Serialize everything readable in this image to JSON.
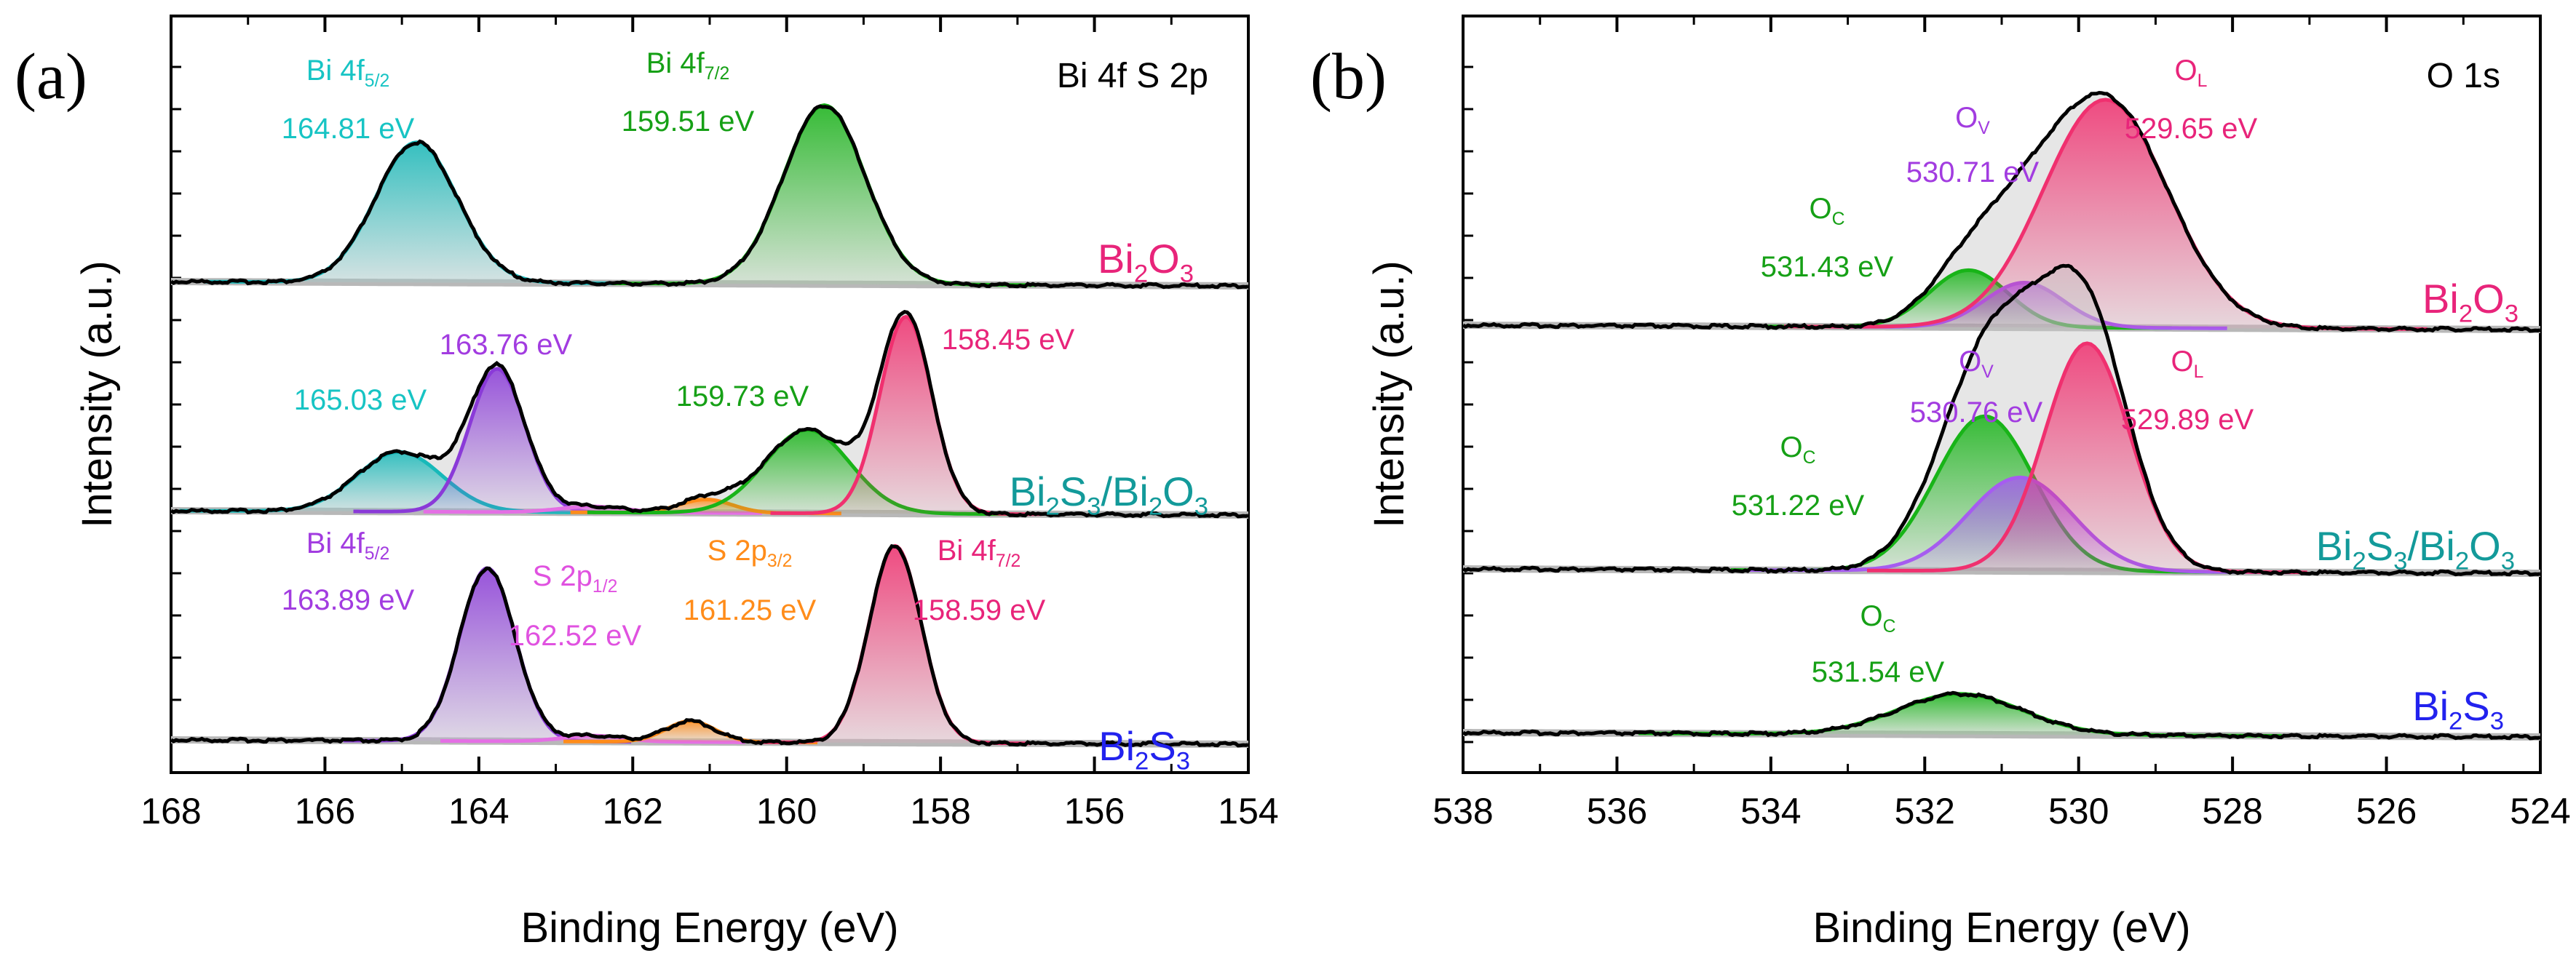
{
  "chart_data": [
    {
      "type": "area",
      "panel_label": "(a)",
      "title": "Bi 4f S 2p",
      "xlabel": "Binding Energy (eV)",
      "ylabel": "Intensity (a.u.)",
      "xlim": [
        168,
        154
      ],
      "x_reversed": true,
      "x_ticks": [
        168,
        166,
        164,
        162,
        160,
        158,
        156,
        154
      ],
      "grid": false,
      "stack_order_top_to_bottom": [
        "Bi2O3",
        "Bi2S3/Bi2O3",
        "Bi2S3"
      ],
      "spectra": [
        {
          "label_parts": [
            [
              "Bi",
              ""
            ],
            [
              "2",
              "sub"
            ],
            [
              "O",
              ""
            ],
            [
              "3",
              "sub"
            ]
          ],
          "label_color": "#e8247a",
          "peaks": [
            {
              "label_parts": [
                [
                  "Bi 4f",
                  ""
                ],
                [
                  "5/2",
                  "sub"
                ]
              ],
              "label_color": "#17c4c4",
              "fill_color": "#17b9b9",
              "center_eV": 164.81,
              "energy_label": "164.81 eV",
              "relative_height": 0.47,
              "fwhm_eV": 1.25
            },
            {
              "label_parts": [
                [
                  "Bi 4f",
                  ""
                ],
                [
                  "7/2",
                  "sub"
                ]
              ],
              "label_color": "#16a016",
              "fill_color": "#18b418",
              "center_eV": 159.51,
              "energy_label": "159.51 eV",
              "relative_height": 0.6,
              "fwhm_eV": 1.25
            }
          ]
        },
        {
          "label_parts": [
            [
              "Bi",
              ""
            ],
            [
              "2",
              "sub"
            ],
            [
              "S",
              ""
            ],
            [
              "3",
              "sub"
            ],
            [
              "/Bi",
              ""
            ],
            [
              "2",
              "sub"
            ],
            [
              "O",
              ""
            ],
            [
              "3",
              "sub"
            ]
          ],
          "label_color": "#139a9a",
          "peaks": [
            {
              "label_parts": [],
              "energy_label": "165.03 eV",
              "label_color": "#17c4c4",
              "fill_color": "#17b9b9",
              "center_eV": 165.03,
              "relative_height": 0.2,
              "fwhm_eV": 1.3
            },
            {
              "label_parts": [],
              "energy_label": "163.76 eV",
              "label_color": "#a23ce0",
              "fill_color": "#8a3ad8",
              "center_eV": 163.76,
              "relative_height": 0.48,
              "fwhm_eV": 0.85
            },
            {
              "label_parts": [],
              "energy_label": "",
              "label_color": "#e052e0",
              "fill_color": "#e46fe4",
              "center_eV": 162.52,
              "relative_height": 0.02,
              "fwhm_eV": 1.0
            },
            {
              "label_parts": [],
              "energy_label": "",
              "label_color": "#ff8c1a",
              "fill_color": "#ff8c1a",
              "center_eV": 161.05,
              "relative_height": 0.045,
              "fwhm_eV": 0.8
            },
            {
              "label_parts": [],
              "energy_label": "159.73 eV",
              "label_color": "#16a016",
              "fill_color": "#18b418",
              "center_eV": 159.73,
              "relative_height": 0.28,
              "fwhm_eV": 1.3
            },
            {
              "label_parts": [],
              "energy_label": "158.45 eV",
              "label_color": "#e8247a",
              "fill_color": "#f0306f",
              "center_eV": 158.45,
              "relative_height": 0.66,
              "fwhm_eV": 0.8
            }
          ]
        },
        {
          "label_parts": [
            [
              "Bi",
              ""
            ],
            [
              "2",
              "sub"
            ],
            [
              "S",
              ""
            ],
            [
              "3",
              "sub"
            ]
          ],
          "label_color": "#2222ee",
          "peaks": [
            {
              "label_parts": [
                [
                  "Bi 4f",
                  ""
                ],
                [
                  "5/2",
                  "sub"
                ]
              ],
              "label_color": "#a23ce0",
              "fill_color": "#8a3ad8",
              "center_eV": 163.89,
              "energy_label": "163.89 eV",
              "relative_height": 0.58,
              "fwhm_eV": 0.85
            },
            {
              "label_parts": [
                [
                  "S 2p",
                  ""
                ],
                [
                  "1/2",
                  "sub"
                ]
              ],
              "label_color": "#e052e0",
              "fill_color": "#e46fe4",
              "center_eV": 162.52,
              "energy_label": "162.52 eV",
              "relative_height": 0.02,
              "fwhm_eV": 0.9
            },
            {
              "label_parts": [
                [
                  "S 2p",
                  ""
                ],
                [
                  "3/2",
                  "sub"
                ]
              ],
              "label_color": "#ff8c1a",
              "fill_color": "#ff8c1a",
              "center_eV": 161.25,
              "energy_label": "161.25 eV",
              "relative_height": 0.07,
              "fwhm_eV": 0.75
            },
            {
              "label_parts": [
                [
                  "Bi 4f",
                  ""
                ],
                [
                  "7/2",
                  "sub"
                ]
              ],
              "label_color": "#e8247a",
              "fill_color": "#f0306f",
              "center_eV": 158.59,
              "energy_label": "158.59 eV",
              "relative_height": 0.66,
              "fwhm_eV": 0.8
            }
          ]
        }
      ]
    },
    {
      "type": "area",
      "panel_label": "(b)",
      "title": "O 1s",
      "xlabel": "Binding Energy (eV)",
      "ylabel": "Intensity (a.u.)",
      "xlim": [
        538,
        524
      ],
      "x_reversed": true,
      "x_ticks": [
        538,
        536,
        534,
        532,
        530,
        528,
        526,
        524
      ],
      "grid": false,
      "stack_order_top_to_bottom": [
        "Bi2O3",
        "Bi2S3/Bi2O3",
        "Bi2S3"
      ],
      "spectra": [
        {
          "label_parts": [
            [
              "Bi",
              ""
            ],
            [
              "2",
              "sub"
            ],
            [
              "O",
              ""
            ],
            [
              "3",
              "sub"
            ]
          ],
          "label_color": "#e8247a",
          "peaks": [
            {
              "label_parts": [
                [
                  "O",
                  ""
                ],
                [
                  "C",
                  "sub"
                ]
              ],
              "label_color": "#16a016",
              "fill_color": "#18b418",
              "center_eV": 531.43,
              "energy_label": "531.43 eV",
              "relative_height": 0.14,
              "fwhm_eV": 1.2
            },
            {
              "label_parts": [
                [
                  "O",
                  ""
                ],
                [
                  "V",
                  "sub"
                ]
              ],
              "label_color": "#a23ce0",
              "fill_color": "#a65cf0",
              "center_eV": 530.71,
              "energy_label": "530.71 eV",
              "relative_height": 0.11,
              "fwhm_eV": 1.2
            },
            {
              "label_parts": [
                [
                  "O",
                  ""
                ],
                [
                  "L",
                  "sub"
                ]
              ],
              "label_color": "#e8247a",
              "fill_color": "#f0306f",
              "center_eV": 529.65,
              "energy_label": "529.65 eV",
              "relative_height": 0.56,
              "fwhm_eV": 1.9
            }
          ]
        },
        {
          "label_parts": [
            [
              "Bi",
              ""
            ],
            [
              "2",
              "sub"
            ],
            [
              "S",
              ""
            ],
            [
              "3",
              "sub"
            ],
            [
              "/Bi",
              ""
            ],
            [
              "2",
              "sub"
            ],
            [
              "O",
              ""
            ],
            [
              "3",
              "sub"
            ]
          ],
          "label_color": "#139a9a",
          "peaks": [
            {
              "label_parts": [
                [
                  "O",
                  ""
                ],
                [
                  "C",
                  "sub"
                ]
              ],
              "label_color": "#16a016",
              "fill_color": "#18b418",
              "center_eV": 531.22,
              "energy_label": "531.22 eV",
              "relative_height": 0.38,
              "fwhm_eV": 1.5
            },
            {
              "label_parts": [
                [
                  "O",
                  ""
                ],
                [
                  "V",
                  "sub"
                ]
              ],
              "label_color": "#a23ce0",
              "fill_color": "#a65cf0",
              "center_eV": 530.76,
              "energy_label": "530.76 eV",
              "relative_height": 0.23,
              "fwhm_eV": 1.6
            },
            {
              "label_parts": [
                [
                  "O",
                  ""
                ],
                [
                  "L",
                  "sub"
                ]
              ],
              "label_color": "#e8247a",
              "fill_color": "#f0306f",
              "center_eV": 529.89,
              "energy_label": "529.89 eV",
              "relative_height": 0.56,
              "fwhm_eV": 1.3
            }
          ]
        },
        {
          "label_parts": [
            [
              "Bi",
              ""
            ],
            [
              "2",
              "sub"
            ],
            [
              "S",
              ""
            ],
            [
              "3",
              "sub"
            ]
          ],
          "label_color": "#2222ee",
          "peaks": [
            {
              "label_parts": [
                [
                  "O",
                  ""
                ],
                [
                  "C",
                  "sub"
                ]
              ],
              "label_color": "#16a016",
              "fill_color": "#18b418",
              "center_eV": 531.54,
              "energy_label": "531.54 eV",
              "relative_height": 0.1,
              "fwhm_eV": 1.9
            }
          ]
        }
      ]
    }
  ]
}
